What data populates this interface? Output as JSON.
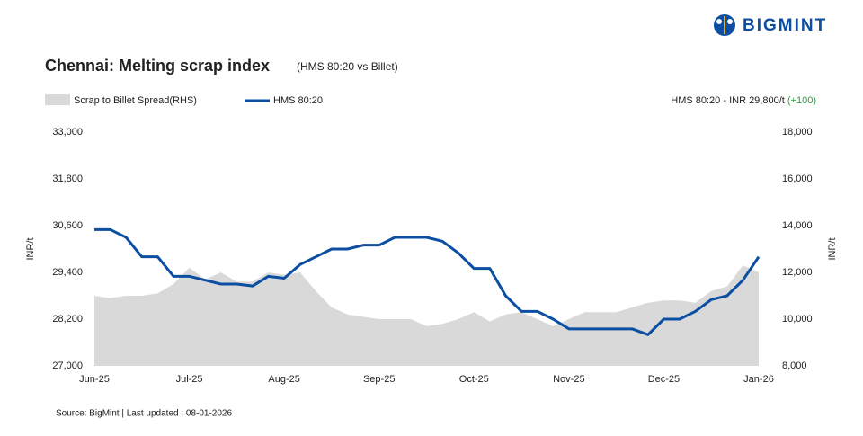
{
  "chart_data": {
    "type": "line",
    "brand": "BIGMINT",
    "title": "Chennai: Melting scrap index",
    "subtitle": "(HMS 80:20 vs Billet)",
    "annotation": "HMS 80:20 - INR 29,800/t",
    "annotation_change": "(+100)",
    "ylabel": "INR/t",
    "y2label": "INR/t",
    "source": "Source: BigMint | Last updated : 08-01-2026",
    "categories": [
      "Jun-25",
      null,
      null,
      null,
      null,
      null,
      "Jul-25",
      null,
      null,
      null,
      null,
      null,
      "Aug-25",
      null,
      null,
      null,
      null,
      null,
      "Sep-25",
      null,
      null,
      null,
      null,
      null,
      "Oct-25",
      null,
      null,
      null,
      null,
      null,
      "Nov-25",
      null,
      null,
      null,
      null,
      null,
      "Dec-25",
      null,
      null,
      null,
      null,
      null,
      "Jan-26"
    ],
    "series": [
      {
        "name": "Scrap to Billet Spread(RHS)",
        "type": "area",
        "axis": "y2",
        "color": "#d9d9d9",
        "values": [
          11000,
          10900,
          11000,
          11000,
          11100,
          11500,
          12200,
          11700,
          12000,
          11600,
          11600,
          12000,
          11900,
          12000,
          11200,
          10500,
          10200,
          10100,
          10000,
          10000,
          10000,
          9700,
          9800,
          10000,
          10300,
          9900,
          10200,
          10300,
          10000,
          9700,
          10000,
          10300,
          10300,
          10300,
          10500,
          10700,
          10800,
          10800,
          10700,
          11200,
          11400,
          12300,
          12000
        ]
      },
      {
        "name": "HMS 80:20",
        "type": "line",
        "color": "#0b4ea2",
        "values": [
          30500,
          30500,
          30300,
          29800,
          29800,
          29300,
          29300,
          29200,
          29100,
          29100,
          29050,
          29300,
          29250,
          29600,
          29800,
          30000,
          30000,
          30100,
          30100,
          30300,
          30300,
          30300,
          30200,
          29900,
          29500,
          29500,
          28800,
          28400,
          28400,
          28200,
          27950,
          27950,
          27950,
          27950,
          27950,
          27800,
          28200,
          28200,
          28400,
          28700,
          28800,
          29200,
          29800
        ]
      }
    ],
    "ylim": [
      27000,
      33000
    ],
    "yticks": [
      {
        "value": 27000,
        "label": "27,000"
      },
      {
        "value": 28200,
        "label": "28,200"
      },
      {
        "value": 29400,
        "label": "29,400"
      },
      {
        "value": 30600,
        "label": "30,600"
      },
      {
        "value": 31800,
        "label": "31,800"
      },
      {
        "value": 33000,
        "label": "33,000"
      }
    ],
    "y2lim": [
      8000,
      18000
    ],
    "y2ticks": [
      {
        "value": 8000,
        "label": "8,000"
      },
      {
        "value": 10000,
        "label": "10,000"
      },
      {
        "value": 12000,
        "label": "12,000"
      },
      {
        "value": 14000,
        "label": "14,000"
      },
      {
        "value": 16000,
        "label": "16,000"
      },
      {
        "value": 18000,
        "label": "18,000"
      }
    ],
    "grid": false
  }
}
